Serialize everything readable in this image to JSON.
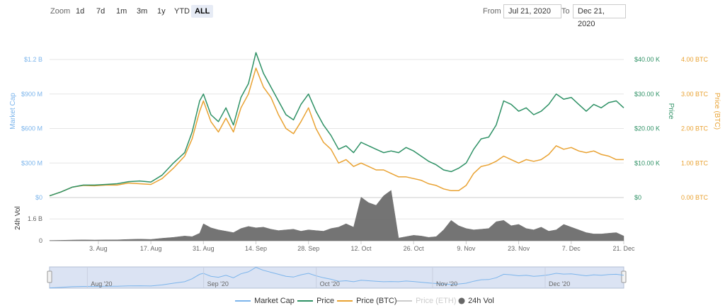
{
  "toolbar": {
    "zoom_label": "Zoom",
    "zoom_buttons": [
      "1d",
      "7d",
      "1m",
      "3m",
      "1y",
      "YTD",
      "ALL"
    ],
    "active_zoom": "ALL",
    "from_label": "From",
    "from_value": "Jul 21, 2020",
    "to_label": "To",
    "to_value": "Dec 21, 2020"
  },
  "colors": {
    "market_cap": "#7cb5ec",
    "price": "#2e9165",
    "price_btc": "#e9a232",
    "price_eth": "#cccccc",
    "volume": "#666666"
  },
  "chart_data": {
    "type": "line",
    "x_tick_labels": [
      "3. Aug",
      "17. Aug",
      "31. Aug",
      "14. Sep",
      "28. Sep",
      "12. Oct",
      "26. Oct",
      "9. Nov",
      "23. Nov",
      "7. Dec",
      "21. Dec"
    ],
    "x_tick_days": [
      13,
      27,
      41,
      55,
      69,
      83,
      97,
      111,
      125,
      139,
      153
    ],
    "x_range_days": [
      0,
      153
    ],
    "axes": {
      "market_cap": {
        "label": "Market Cap",
        "ticks": [
          "$0",
          "$300 M",
          "$600 M",
          "$900 M",
          "$1.2 B"
        ],
        "range": [
          0,
          1.2
        ]
      },
      "price": {
        "label": "Price",
        "ticks": [
          "$0",
          "$10.00 K",
          "$20.00 K",
          "$30.00 K",
          "$40.00 K"
        ],
        "range": [
          0,
          40
        ]
      },
      "price_btc": {
        "label": "Price (BTC)",
        "ticks": [
          "0.00 BTC",
          "1.00 BTC",
          "2.00 BTC",
          "3.00 BTC",
          "4.00 BTC"
        ],
        "range": [
          0,
          4
        ]
      },
      "volume": {
        "label": "24h Vol",
        "ticks": [
          "0",
          "1.6 B"
        ],
        "range": [
          0,
          2.6
        ]
      }
    },
    "series": [
      {
        "name": "Price",
        "key": "price",
        "unit": "K USD",
        "x": [
          0,
          3,
          6,
          9,
          12,
          15,
          18,
          21,
          24,
          27,
          30,
          33,
          36,
          38,
          40,
          41,
          43,
          45,
          47,
          49,
          51,
          53,
          55,
          57,
          59,
          61,
          63,
          65,
          67,
          69,
          71,
          73,
          75,
          77,
          79,
          81,
          83,
          85,
          87,
          89,
          91,
          93,
          95,
          97,
          99,
          101,
          103,
          105,
          107,
          109,
          111,
          113,
          115,
          117,
          119,
          121,
          123,
          125,
          127,
          129,
          131,
          133,
          135,
          137,
          139,
          141,
          143,
          145,
          147,
          149,
          151,
          153
        ],
        "values": [
          0.5,
          1.6,
          3.0,
          3.6,
          3.6,
          3.8,
          4.0,
          4.6,
          4.8,
          4.5,
          6.5,
          10.0,
          13.0,
          19.0,
          28.0,
          30.0,
          24.0,
          22.0,
          26.0,
          21.0,
          29.0,
          33.0,
          42.0,
          36.0,
          32.0,
          28.0,
          24.0,
          22.5,
          27.0,
          30.0,
          25.0,
          21.0,
          18.0,
          14.0,
          15.0,
          13.0,
          16.0,
          15.0,
          14.0,
          13.0,
          13.5,
          13.0,
          14.5,
          13.5,
          12.0,
          10.5,
          9.5,
          8.0,
          7.5,
          8.5,
          10.0,
          14.0,
          17.0,
          17.5,
          21.0,
          28.0,
          27.0,
          25.0,
          26.0,
          24.0,
          25.0,
          27.0,
          30.0,
          28.5,
          29.0,
          27.0,
          25.0,
          27.0,
          26.0,
          27.5,
          28.0,
          26.0
        ]
      },
      {
        "name": "Price (BTC)",
        "key": "price_btc",
        "unit": "BTC",
        "x": [
          0,
          3,
          6,
          9,
          12,
          15,
          18,
          21,
          24,
          27,
          30,
          33,
          36,
          38,
          40,
          41,
          43,
          45,
          47,
          49,
          51,
          53,
          55,
          57,
          59,
          61,
          63,
          65,
          67,
          69,
          71,
          73,
          75,
          77,
          79,
          81,
          83,
          85,
          87,
          89,
          91,
          93,
          95,
          97,
          99,
          101,
          103,
          105,
          107,
          109,
          111,
          113,
          115,
          117,
          119,
          121,
          123,
          125,
          127,
          129,
          131,
          133,
          135,
          137,
          139,
          141,
          143,
          145,
          147,
          149,
          151,
          153
        ],
        "values": [
          0.05,
          0.16,
          0.3,
          0.35,
          0.34,
          0.36,
          0.36,
          0.42,
          0.4,
          0.38,
          0.55,
          0.85,
          1.2,
          1.7,
          2.5,
          2.8,
          2.2,
          1.9,
          2.3,
          1.9,
          2.6,
          3.0,
          3.75,
          3.2,
          2.9,
          2.4,
          2.0,
          1.85,
          2.2,
          2.6,
          2.0,
          1.6,
          1.4,
          1.0,
          1.1,
          0.9,
          1.0,
          0.9,
          0.8,
          0.8,
          0.7,
          0.6,
          0.6,
          0.55,
          0.5,
          0.4,
          0.35,
          0.25,
          0.2,
          0.2,
          0.35,
          0.7,
          0.9,
          0.95,
          1.05,
          1.2,
          1.1,
          1.0,
          1.1,
          1.05,
          1.1,
          1.25,
          1.5,
          1.4,
          1.45,
          1.35,
          1.3,
          1.35,
          1.25,
          1.2,
          1.1,
          1.1
        ]
      },
      {
        "name": "24h Vol",
        "key": "volume",
        "unit": "B USD",
        "x": [
          0,
          3,
          6,
          9,
          12,
          15,
          18,
          21,
          24,
          27,
          30,
          33,
          36,
          38,
          40,
          41,
          43,
          45,
          47,
          49,
          51,
          53,
          55,
          57,
          59,
          61,
          63,
          65,
          67,
          69,
          71,
          73,
          75,
          77,
          79,
          81,
          83,
          85,
          87,
          89,
          91,
          93,
          95,
          97,
          99,
          101,
          103,
          105,
          107,
          109,
          111,
          113,
          115,
          117,
          119,
          121,
          123,
          125,
          127,
          129,
          131,
          133,
          135,
          137,
          139,
          141,
          143,
          145,
          147,
          149,
          151,
          153
        ],
        "values": [
          0.02,
          0.03,
          0.05,
          0.06,
          0.05,
          0.06,
          0.07,
          0.1,
          0.12,
          0.1,
          0.18,
          0.25,
          0.35,
          0.3,
          0.55,
          1.25,
          0.95,
          0.8,
          0.7,
          0.6,
          0.9,
          1.05,
          0.95,
          1.0,
          0.85,
          0.75,
          0.8,
          0.85,
          0.7,
          0.8,
          0.75,
          0.7,
          0.9,
          1.0,
          1.25,
          1.0,
          3.2,
          2.8,
          2.6,
          3.3,
          3.7,
          0.2,
          0.3,
          0.4,
          0.35,
          0.25,
          0.3,
          0.8,
          1.5,
          1.1,
          0.9,
          0.8,
          0.85,
          0.9,
          1.4,
          1.5,
          1.1,
          1.2,
          0.9,
          0.8,
          1.0,
          0.7,
          0.8,
          1.2,
          1.0,
          0.8,
          0.6,
          0.5,
          0.5,
          0.55,
          0.6,
          0.35
        ]
      },
      {
        "name": "Market Cap",
        "key": "market_cap",
        "unit": "B USD",
        "visible": false
      },
      {
        "name": "Price (ETH)",
        "key": "price_eth",
        "unit": "ETH",
        "visible": false
      }
    ],
    "navigator": {
      "labels": [
        "Aug '20",
        "Sep '20",
        "Oct '20",
        "Nov '20",
        "Dec '20"
      ],
      "label_days": [
        11,
        42,
        72,
        103,
        133
      ]
    },
    "legend": {
      "placement": "bottom",
      "items": [
        "Market Cap",
        "Price",
        "Price (BTC)",
        "Price (ETH)",
        "24h Vol"
      ]
    }
  }
}
